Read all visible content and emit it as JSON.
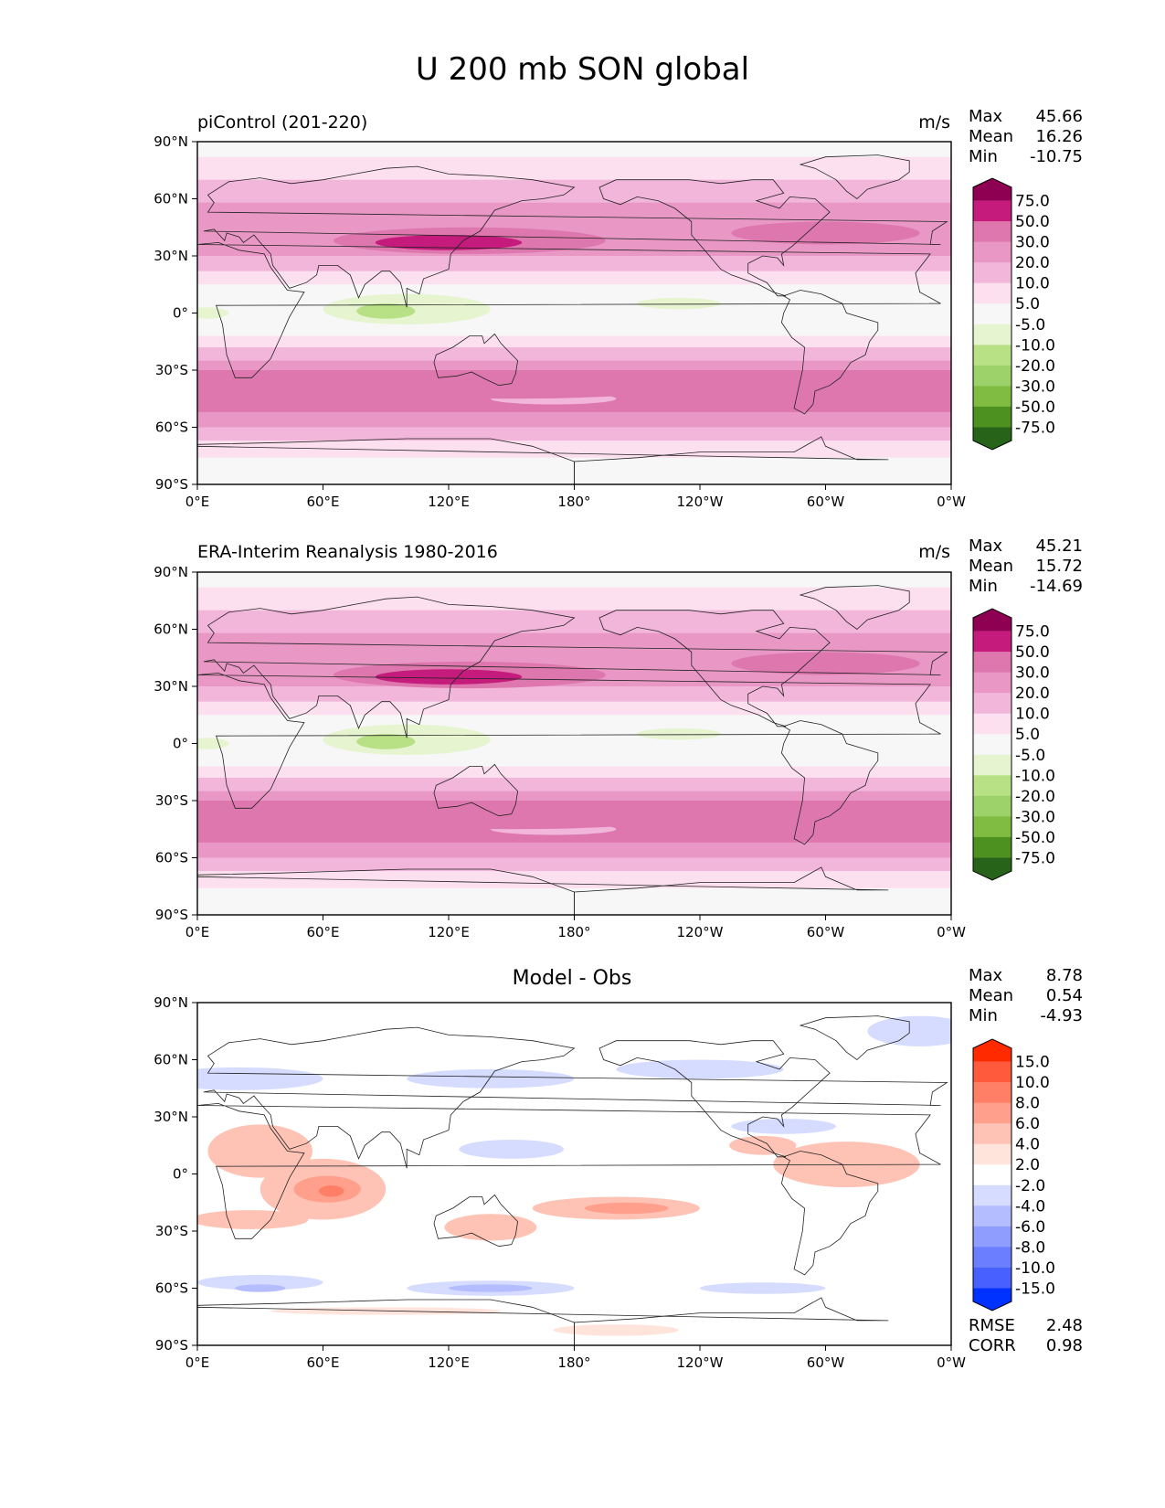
{
  "figure": {
    "title": "U 200 mb SON global",
    "panels": [
      {
        "title": "piControl (201-220)",
        "units": "m/s",
        "stats": [
          {
            "label": "Max",
            "value": "45.66"
          },
          {
            "label": "Mean",
            "value": "16.26"
          },
          {
            "label": "Min",
            "value": "-10.75"
          }
        ]
      },
      {
        "title": "ERA-Interim Reanalysis 1980-2016",
        "units": "m/s",
        "stats": [
          {
            "label": "Max",
            "value": "45.21"
          },
          {
            "label": "Mean",
            "value": "15.72"
          },
          {
            "label": "Min",
            "value": "-14.69"
          }
        ]
      },
      {
        "title": "Model - Obs",
        "units": "",
        "stats": [
          {
            "label": "Max",
            "value": "8.78"
          },
          {
            "label": "Mean",
            "value": "0.54"
          },
          {
            "label": "Min",
            "value": "-4.93"
          }
        ],
        "extra_stats": [
          {
            "label": "RMSE",
            "value": "2.48"
          },
          {
            "label": "CORR",
            "value": "0.98"
          }
        ]
      }
    ]
  },
  "chart_data": [
    {
      "type": "heatmap",
      "title": "piControl (201-220)",
      "units": "m/s",
      "x_ticks": [
        "0°E",
        "60°E",
        "120°E",
        "180°",
        "120°W",
        "60°W",
        "0°W"
      ],
      "y_ticks": [
        "90°N",
        "60°N",
        "30°N",
        "0°",
        "30°S",
        "60°S",
        "90°S"
      ],
      "colorbar": {
        "levels": [
          "75.0",
          "50.0",
          "30.0",
          "20.0",
          "10.0",
          "5.0",
          "-5.0",
          "-10.0",
          "-20.0",
          "-30.0",
          "-50.0",
          "-75.0"
        ],
        "colors": [
          "#8e0152",
          "#c51b7d",
          "#de77ae",
          "#e998c6",
          "#f1b6da",
          "#fde0ef",
          "#f7f7f7",
          "#e6f5d0",
          "#b8e186",
          "#9dd16a",
          "#7fbc41",
          "#4d9221",
          "#276419"
        ]
      },
      "zonal_profile": {
        "lat": [
          90,
          75,
          60,
          50,
          45,
          40,
          35,
          30,
          25,
          20,
          15,
          10,
          5,
          0,
          -5,
          -10,
          -15,
          -20,
          -25,
          -30,
          -35,
          -40,
          -45,
          -50,
          -55,
          -60,
          -65,
          -70,
          -75,
          -90
        ],
        "u": [
          3,
          8,
          14,
          22,
          27,
          30,
          30,
          26,
          20,
          13,
          6,
          2,
          -2,
          -4,
          0,
          6,
          14,
          24,
          30,
          33,
          34,
          33,
          30,
          25,
          18,
          12,
          8,
          4,
          2,
          0
        ]
      }
    },
    {
      "type": "heatmap",
      "title": "ERA-Interim Reanalysis 1980-2016",
      "units": "m/s",
      "x_ticks": [
        "0°E",
        "60°E",
        "120°E",
        "180°",
        "120°W",
        "60°W",
        "0°W"
      ],
      "y_ticks": [
        "90°N",
        "60°N",
        "30°N",
        "0°",
        "30°S",
        "60°S",
        "90°S"
      ],
      "colorbar": {
        "levels": [
          "75.0",
          "50.0",
          "30.0",
          "20.0",
          "10.0",
          "5.0",
          "-5.0",
          "-10.0",
          "-20.0",
          "-30.0",
          "-50.0",
          "-75.0"
        ],
        "colors": [
          "#8e0152",
          "#c51b7d",
          "#de77ae",
          "#e998c6",
          "#f1b6da",
          "#fde0ef",
          "#f7f7f7",
          "#e6f5d0",
          "#b8e186",
          "#9dd16a",
          "#7fbc41",
          "#4d9221",
          "#276419"
        ]
      },
      "zonal_profile": {
        "lat": [
          90,
          75,
          60,
          50,
          45,
          40,
          35,
          30,
          25,
          20,
          15,
          10,
          5,
          0,
          -5,
          -10,
          -15,
          -20,
          -25,
          -30,
          -35,
          -40,
          -45,
          -50,
          -55,
          -60,
          -65,
          -70,
          -75,
          -90
        ],
        "u": [
          3,
          8,
          14,
          22,
          26,
          29,
          29,
          25,
          18,
          11,
          4,
          0,
          -4,
          -6,
          -2,
          5,
          13,
          22,
          28,
          32,
          33,
          32,
          29,
          24,
          17,
          11,
          7,
          3,
          1,
          0
        ]
      }
    },
    {
      "type": "heatmap",
      "title": "Model - Obs",
      "x_ticks": [
        "0°E",
        "60°E",
        "120°E",
        "180°",
        "120°W",
        "60°W",
        "0°W"
      ],
      "y_ticks": [
        "90°N",
        "60°N",
        "30°N",
        "0°",
        "30°S",
        "60°S",
        "90°S"
      ],
      "colorbar": {
        "levels": [
          "15.0",
          "10.0",
          "8.0",
          "6.0",
          "4.0",
          "2.0",
          "-2.0",
          "-4.0",
          "-6.0",
          "-8.0",
          "-10.0",
          "-15.0"
        ],
        "colors": [
          "#ff2a00",
          "#ff5a3c",
          "#ff7f66",
          "#ff9f8c",
          "#ffc3b5",
          "#ffe4dc",
          "#ffffff",
          "#d6dcff",
          "#b3bdff",
          "#8f9dff",
          "#6b7eff",
          "#4760ff",
          "#0032ff"
        ]
      }
    }
  ]
}
